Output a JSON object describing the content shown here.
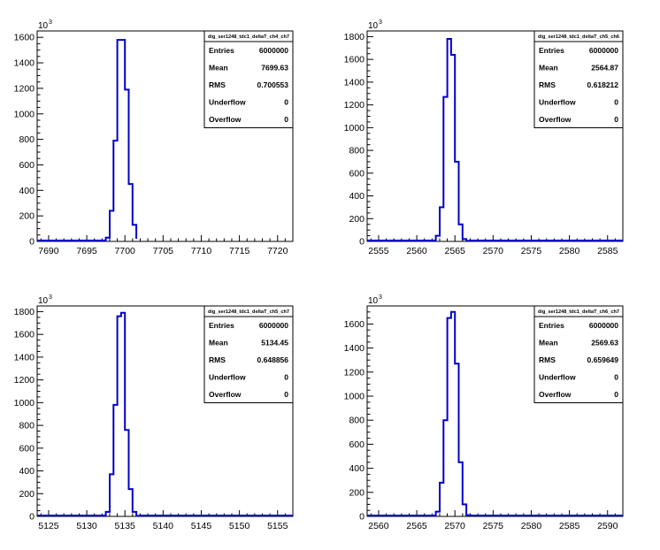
{
  "chart_data": [
    {
      "type": "bar",
      "histogram": "dig_ser1248_tdc1_deltaT_ch4_ch7",
      "exponent_label": "10",
      "exponent_power": "3",
      "xlim": [
        7688.5,
        7722
      ],
      "ylim": [
        0,
        1650
      ],
      "xticks": [
        7690,
        7695,
        7700,
        7705,
        7710,
        7715,
        7720
      ],
      "yticks": [
        0,
        200,
        400,
        600,
        800,
        1000,
        1200,
        1400,
        1600
      ],
      "ytick_labels": [
        "0",
        "200",
        "400",
        "600",
        "800",
        "1000",
        "1200",
        "1400",
        "1600"
      ],
      "bin_edges": [
        7697.5,
        7698,
        7698.5,
        7699,
        7699.5,
        7700,
        7700.5,
        7701,
        7701.5
      ],
      "bin_values": [
        30,
        240,
        790,
        1580,
        1580,
        1190,
        450,
        130,
        20
      ],
      "stats": [
        {
          "label": "Entries",
          "value": "6000000"
        },
        {
          "label": "Mean",
          "value": "7699.63"
        },
        {
          "label": "RMS",
          "value": "0.700553"
        },
        {
          "label": "Underflow",
          "value": "0"
        },
        {
          "label": "Overflow",
          "value": "0"
        }
      ]
    },
    {
      "type": "bar",
      "histogram": "dig_ser1248_tdc1_deltaT_ch5_ch6",
      "exponent_label": "10",
      "exponent_power": "3",
      "xlim": [
        2553.5,
        2587
      ],
      "ylim": [
        0,
        1850
      ],
      "xticks": [
        2555,
        2560,
        2565,
        2570,
        2575,
        2580,
        2585
      ],
      "yticks": [
        0,
        200,
        400,
        600,
        800,
        1000,
        1200,
        1400,
        1600,
        1800
      ],
      "ytick_labels": [
        "0",
        "200",
        "400",
        "600",
        "800",
        "1000",
        "1200",
        "1400",
        "1600",
        "1800"
      ],
      "bin_edges": [
        2562.5,
        2563,
        2563.5,
        2564,
        2564.5,
        2565,
        2565.5,
        2566,
        2566.5,
        2567
      ],
      "bin_values": [
        50,
        300,
        1270,
        1780,
        1640,
        700,
        150,
        20,
        5
      ],
      "stats": [
        {
          "label": "Entries",
          "value": "6000000"
        },
        {
          "label": "Mean",
          "value": "2564.87"
        },
        {
          "label": "RMS",
          "value": "0.618212"
        },
        {
          "label": "Underflow",
          "value": "0"
        },
        {
          "label": "Overflow",
          "value": "0"
        }
      ]
    },
    {
      "type": "bar",
      "histogram": "dig_ser1248_tdc1_deltaT_ch5_ch7",
      "exponent_label": "10",
      "exponent_power": "3",
      "xlim": [
        5123.5,
        5157
      ],
      "ylim": [
        0,
        1850
      ],
      "xticks": [
        5125,
        5130,
        5135,
        5140,
        5145,
        5150,
        5155
      ],
      "yticks": [
        0,
        200,
        400,
        600,
        800,
        1000,
        1200,
        1400,
        1600,
        1800
      ],
      "ytick_labels": [
        "0",
        "200",
        "400",
        "600",
        "800",
        "1000",
        "1200",
        "1400",
        "1600",
        "1800"
      ],
      "bin_edges": [
        5132.5,
        5133,
        5133.5,
        5134,
        5134.5,
        5135,
        5135.5,
        5136,
        5136.5,
        5137
      ],
      "bin_values": [
        40,
        370,
        980,
        1760,
        1790,
        760,
        240,
        40,
        5
      ],
      "stats": [
        {
          "label": "Entries",
          "value": "6000000"
        },
        {
          "label": "Mean",
          "value": "5134.45"
        },
        {
          "label": "RMS",
          "value": "0.648856"
        },
        {
          "label": "Underflow",
          "value": "0"
        },
        {
          "label": "Overflow",
          "value": "0"
        }
      ]
    },
    {
      "type": "bar",
      "histogram": "dig_ser1248_tdc1_deltaT_ch6_ch7",
      "exponent_label": "10",
      "exponent_power": "3",
      "xlim": [
        2558.5,
        2592
      ],
      "ylim": [
        0,
        1750
      ],
      "xticks": [
        2560,
        2565,
        2570,
        2575,
        2580,
        2585,
        2590
      ],
      "yticks": [
        0,
        200,
        400,
        600,
        800,
        1000,
        1200,
        1400,
        1600
      ],
      "ytick_labels": [
        "0",
        "200",
        "400",
        "600",
        "800",
        "1000",
        "1200",
        "1400",
        "1600"
      ],
      "bin_edges": [
        2567.5,
        2568,
        2568.5,
        2569,
        2569.5,
        2570,
        2570.5,
        2571,
        2571.5,
        2572
      ],
      "bin_values": [
        40,
        280,
        800,
        1650,
        1700,
        1270,
        450,
        100,
        10
      ],
      "stats": [
        {
          "label": "Entries",
          "value": "6000000"
        },
        {
          "label": "Mean",
          "value": "2569.63"
        },
        {
          "label": "RMS",
          "value": "0.659649"
        },
        {
          "label": "Underflow",
          "value": "0"
        },
        {
          "label": "Overflow",
          "value": "0"
        }
      ]
    }
  ],
  "colors": {
    "histogram_line": "#0000cc",
    "axis": "#000000",
    "background": "#ffffff"
  }
}
